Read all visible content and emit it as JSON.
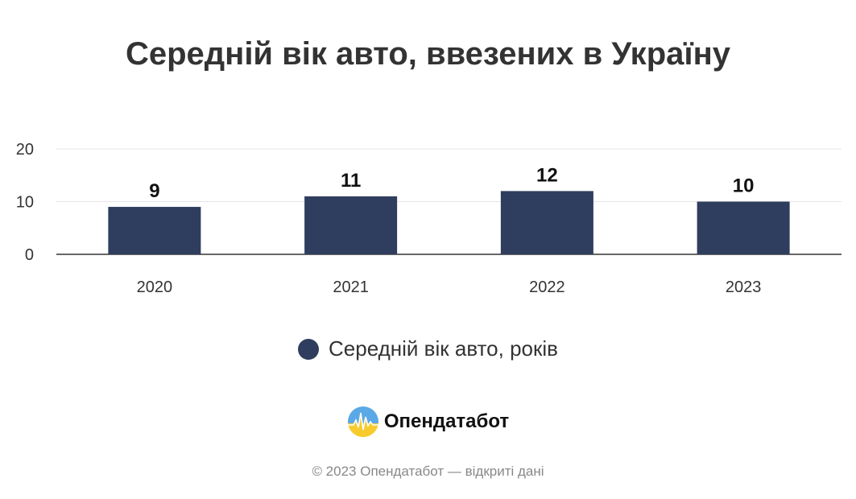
{
  "chart_data": {
    "type": "bar",
    "title": "Середній вік авто, ввезених в Україну",
    "categories": [
      "2020",
      "2021",
      "2022",
      "2023"
    ],
    "series": [
      {
        "name": "Середній вік авто, років",
        "values": [
          9,
          11,
          12,
          10
        ]
      }
    ],
    "data_labels": [
      "9",
      "11",
      "12",
      "10"
    ],
    "yticks": [
      "0",
      "10",
      "20"
    ],
    "ylim": [
      0,
      20
    ],
    "grid": true,
    "legend_position": "bottom-center",
    "colors": {
      "bar": "#2f3d5e",
      "grid": "#e6e6e6",
      "axis": "#333333"
    }
  },
  "brand": {
    "name": "Опендатабот",
    "logo_icon": "opendatabot-logo-icon"
  },
  "footer": {
    "text": "© 2023 Опендатабот — відкриті дані"
  }
}
